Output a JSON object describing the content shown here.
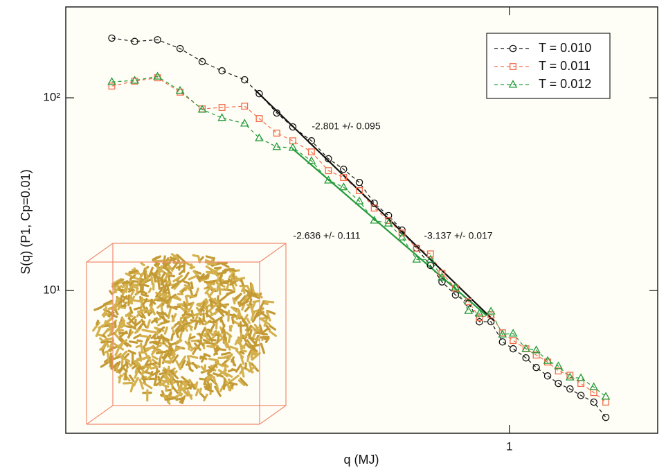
{
  "chart_data": {
    "type": "line",
    "xlabel": "q (MJ)",
    "ylabel": "S(q) (P1, Cp=0.01)",
    "log_x": true,
    "log_y": true,
    "xlim": [
      0.1,
      2.16
    ],
    "ylim": [
      1.82,
      296
    ],
    "xticks": [
      1
    ],
    "yticks": [
      {
        "value": 10,
        "label": "10¹"
      },
      {
        "value": 100,
        "label": "10²"
      }
    ],
    "legend": "top-right",
    "x": [
      0.127,
      0.143,
      0.161,
      0.181,
      0.203,
      0.225,
      0.253,
      0.273,
      0.299,
      0.325,
      0.358,
      0.391,
      0.423,
      0.459,
      0.496,
      0.534,
      0.573,
      0.618,
      0.664,
      0.705,
      0.756,
      0.809,
      0.856,
      0.909,
      0.965,
      1.02,
      1.09,
      1.15,
      1.22,
      1.29,
      1.37,
      1.45,
      1.55,
      1.65
    ],
    "series": [
      {
        "name": "T = 0.010",
        "color": "#111111",
        "marker": "circle",
        "values": [
          204,
          196,
          200,
          180,
          154,
          138,
          124,
          105,
          83.4,
          70.6,
          59.8,
          48.3,
          42.6,
          36.4,
          28.4,
          24.5,
          20.6,
          16.6,
          13.5,
          11.1,
          9.5,
          8.61,
          6.89,
          6.9,
          5.42,
          4.99,
          4.48,
          3.99,
          3.61,
          3.3,
          3.09,
          2.86,
          2.64,
          2.2
        ]
      },
      {
        "name": "T = 0.011",
        "color": "#f26b4a",
        "marker": "square",
        "values": [
          115,
          122,
          127,
          107,
          87.6,
          89.1,
          90.5,
          78,
          65.6,
          59.8,
          52.4,
          41.9,
          38.6,
          33,
          26.8,
          23.1,
          19.9,
          16.6,
          15.5,
          12.3,
          10.3,
          8.76,
          7.24,
          7.48,
          6.04,
          5.51,
          4.99,
          4.63,
          4.26,
          3.83,
          3.64,
          3.3,
          2.96,
          2.64
        ]
      },
      {
        "name": "T = 0.012",
        "color": "#239b3a",
        "marker": "triangle",
        "values": [
          121,
          123,
          129,
          109,
          86.9,
          78.7,
          73.6,
          61.8,
          55.6,
          55.1,
          47.1,
          37.3,
          34.4,
          29.1,
          23.1,
          22.3,
          18.9,
          14.5,
          14.5,
          11.7,
          10.4,
          7.86,
          7.61,
          7.8,
          5.93,
          5.99,
          4.99,
          4.91,
          4.33,
          4.06,
          3.55,
          3.52,
          3.16,
          2.82
        ]
      }
    ],
    "fits": [
      {
        "color": "#111111",
        "x": [
          0.267,
          0.922
        ],
        "values": [
          110,
          7.0
        ]
      },
      {
        "color": "#239b3a",
        "x": [
          0.324,
          0.889
        ],
        "values": [
          54.6,
          7.42
        ]
      }
    ],
    "annotations": [
      "-2.801 +/- 0.095",
      "-2.636 +/- 0.111",
      "-3.137 +/- 0.017"
    ]
  }
}
